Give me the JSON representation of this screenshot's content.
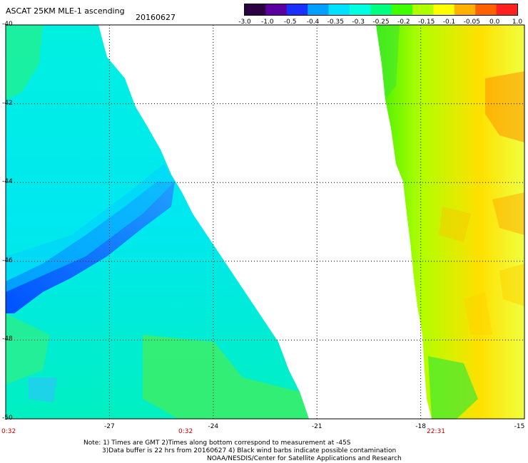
{
  "header": {
    "title": "ASCAT 25KM MLE-1 ascending",
    "date": "20160627"
  },
  "colorbar": {
    "labels": [
      "-3.0",
      "-1.0",
      "-0.5",
      "-0.4",
      "-0.35",
      "-0.3",
      "-0.25",
      "-0.2",
      "-0.15",
      "-0.1",
      "-0.05",
      "0.0",
      "1.0"
    ],
    "colors": [
      "#2a0040",
      "#5a00a0",
      "#1a30ff",
      "#00a0ff",
      "#00e0ff",
      "#00ffe0",
      "#00ff80",
      "#40ff00",
      "#b0ff00",
      "#ffff00",
      "#ffb000",
      "#ff6000",
      "#ff2020"
    ]
  },
  "map": {
    "lat_ticks": [
      "-40",
      "-42",
      "-44",
      "-46",
      "-48",
      "-50"
    ],
    "lon_ticks": [
      "-27",
      "-24",
      "-21",
      "-18",
      "-15"
    ],
    "time_labels": [
      "0:32",
      "0:32",
      "22:31"
    ]
  },
  "footer": {
    "note_line1": "Note: 1) Times are GMT 2)Times along bottom correspond to measurement at -45S",
    "note_line2": "3)Data buffer is 22 hrs from 20160627 4) Black wind barbs indicate possible contamination",
    "credit": "NOAA/NESDIS/Center for Satellite Applications and Research"
  }
}
